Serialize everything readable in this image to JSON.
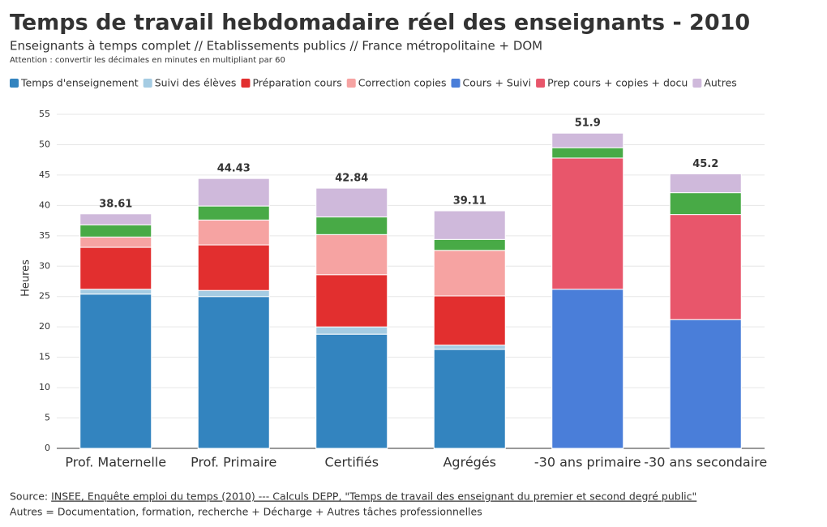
{
  "chart_data": {
    "type": "stacked_bar",
    "title": "Temps de travail hebdomadaire réel des enseignants - 2010",
    "subtitle": "Enseignants à temps complet // Etablissements publics // France métropolitaine + DOM",
    "note": "Attention : convertir les décimales en minutes en multipliant par 60",
    "y_label": "Heures",
    "categories": [
      "Prof. Maternelle",
      "Prof. Primaire",
      "Certifiés",
      "Agrégés",
      "-30 ans primaire",
      "-30 ans secondaire"
    ],
    "series": [
      {
        "name": "Temps d'enseignement",
        "color": "#3384bf",
        "values": [
          25.4,
          25.0,
          18.8,
          16.3,
          null,
          null
        ]
      },
      {
        "name": "Suivi des élèves",
        "color": "#a5cce3",
        "values": [
          0.8,
          1.0,
          1.2,
          0.7,
          null,
          null
        ]
      },
      {
        "name": "Préparation cours",
        "color": "#e22f2f",
        "values": [
          6.9,
          7.5,
          8.6,
          8.1,
          null,
          null
        ]
      },
      {
        "name": "Correction copies",
        "color": "#f6a3a2",
        "values": [
          1.7,
          4.1,
          6.6,
          7.5,
          null,
          null
        ]
      },
      {
        "name": "Cours + Suivi",
        "color": "#4a7ed9",
        "values": [
          null,
          null,
          null,
          null,
          26.2,
          21.2
        ]
      },
      {
        "name": "Prep cours + copies + docu",
        "color": "#e8566b",
        "values": [
          null,
          null,
          null,
          null,
          21.6,
          17.3
        ]
      },
      {
        "name": null,
        "color": "#48aa46",
        "values": [
          2.0,
          2.3,
          2.9,
          1.8,
          1.7,
          3.6
        ]
      },
      {
        "name": "Autres",
        "color": "#cfb9db",
        "values": [
          1.81,
          4.53,
          4.74,
          4.71,
          2.4,
          3.1
        ]
      }
    ],
    "totals": [
      38.61,
      44.43,
      42.84,
      39.11,
      51.9,
      45.2
    ],
    "ylim": [
      0,
      55
    ],
    "yticks": [
      0,
      5,
      10,
      15,
      20,
      25,
      30,
      35,
      40,
      45,
      50,
      55
    ],
    "grid": true,
    "source_prefix": "Source:",
    "source_link": "INSEE, Enquête emploi du temps (2010) --- Calculs DEPP, \"Temps de travail des enseignant du premier et second degré public\"",
    "footnote": "Autres = Documentation, formation, recherche + Décharge + Autres tâches professionnelles"
  }
}
